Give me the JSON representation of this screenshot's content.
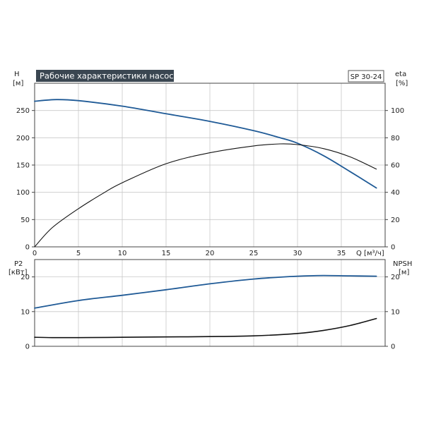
{
  "chart_data": [
    {
      "type": "line",
      "title": "Рабочие характеристики насоса",
      "badge": "SP 30-24",
      "xlabel": "Q [м³/ч]",
      "ylabel_left": [
        "H",
        "[м]"
      ],
      "ylabel_right": [
        "eta",
        "[%]"
      ],
      "xlim": [
        0,
        40
      ],
      "ylim_left": [
        0,
        300
      ],
      "ylim_right": [
        0,
        120
      ],
      "x_ticks": [
        0,
        5,
        10,
        15,
        20,
        25,
        30,
        35
      ],
      "y_left_ticks": [
        0,
        50,
        100,
        150,
        200,
        250
      ],
      "y_right_ticks": [
        0,
        20,
        40,
        60,
        80,
        100
      ],
      "grid": true,
      "series": [
        {
          "axis": "left",
          "color": "#1f5a96",
          "x": [
            0,
            2.5,
            5,
            10,
            15,
            20,
            25,
            28,
            30,
            33,
            36,
            39
          ],
          "y": [
            267,
            270,
            268,
            258,
            244,
            230,
            213,
            200,
            190,
            167,
            138,
            108
          ]
        },
        {
          "axis": "right",
          "color": "#111111",
          "x": [
            0,
            2,
            5,
            8,
            10,
            15,
            20,
            25,
            28,
            30,
            33,
            36,
            39
          ],
          "y": [
            0,
            14,
            28,
            40,
            47,
            61,
            69,
            74,
            75.5,
            75,
            72,
            66,
            57
          ]
        }
      ]
    },
    {
      "type": "line",
      "ylabel_left": [
        "P2",
        "[кВт]"
      ],
      "ylabel_right": [
        "NPSH",
        "[м]"
      ],
      "xlim": [
        0,
        40
      ],
      "ylim_left": [
        0,
        25
      ],
      "ylim_right": [
        0,
        25
      ],
      "y_left_ticks": [
        0,
        10,
        20
      ],
      "y_right_ticks": [
        0,
        10,
        20
      ],
      "grid": true,
      "series": [
        {
          "axis": "left",
          "color": "#1f5a96",
          "x": [
            0,
            5,
            10,
            15,
            20,
            25,
            30,
            33,
            36,
            39
          ],
          "y": [
            11,
            13.2,
            14.7,
            16.3,
            18,
            19.4,
            20.2,
            20.4,
            20.3,
            20.2
          ]
        },
        {
          "axis": "right",
          "color": "#111111",
          "x": [
            0,
            2,
            5,
            10,
            15,
            20,
            25,
            30,
            33,
            36,
            39
          ],
          "y": [
            2.6,
            2.5,
            2.5,
            2.6,
            2.7,
            2.8,
            3.0,
            3.7,
            4.6,
            6.0,
            8.0
          ]
        }
      ]
    }
  ]
}
